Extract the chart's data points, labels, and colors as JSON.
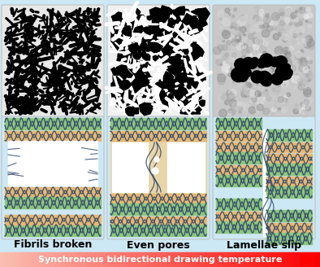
{
  "bg_color": "#cce8f4",
  "panel_bg": "#cde8f5",
  "labels": [
    "Fibrils broken",
    "Even pores",
    "Lamellae slip"
  ],
  "label_fontsize": 9,
  "label_fontweight": "bold",
  "arrow_text": "Synchronous bidirectional drawing temperature",
  "arrow_text_color": "#ffffff",
  "green_color": "#8cc87a",
  "orange_color": "#e8b870",
  "wave_color": "#3a5070",
  "fig_width": 3.94,
  "fig_height": 3.28,
  "dpi": 100
}
